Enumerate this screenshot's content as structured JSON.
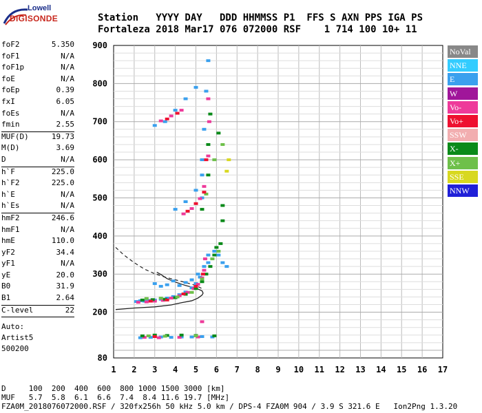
{
  "logo": {
    "line1": "Lowell",
    "line2": "DIGISONDE"
  },
  "header": {
    "line1": "Station   YYYY DAY   DDD HHMMSS P1  FFS S AXN PPS IGA PS",
    "line2": "Fortaleza 2018 Mar17 076 072000 RSF    1 714 100 10+ 11"
  },
  "params": {
    "group1": [
      {
        "k": "foF2",
        "v": "5.350"
      },
      {
        "k": "foF1",
        "v": "N/A"
      },
      {
        "k": "foF1p",
        "v": "N/A"
      },
      {
        "k": "foE",
        "v": "N/A"
      },
      {
        "k": "foEp",
        "v": "0.39"
      },
      {
        "k": "fxI",
        "v": "6.05"
      },
      {
        "k": "foEs",
        "v": "N/A"
      },
      {
        "k": "fmin",
        "v": "2.55"
      }
    ],
    "group2": [
      {
        "k": "MUF(D)",
        "v": "19.73"
      },
      {
        "k": "M(D)",
        "v": "3.69"
      },
      {
        "k": "D",
        "v": "N/A"
      }
    ],
    "group3": [
      {
        "k": "h`F",
        "v": "225.0"
      },
      {
        "k": "h`F2",
        "v": "225.0"
      },
      {
        "k": "h`E",
        "v": "N/A"
      },
      {
        "k": "h`Es",
        "v": "N/A"
      }
    ],
    "group4": [
      {
        "k": "hmF2",
        "v": "246.6"
      },
      {
        "k": "hmF1",
        "v": "N/A"
      },
      {
        "k": "hmE",
        "v": "110.0"
      },
      {
        "k": "yF2",
        "v": "34.4"
      },
      {
        "k": "yF1",
        "v": "N/A"
      },
      {
        "k": "yE",
        "v": "20.0"
      },
      {
        "k": "B0",
        "v": "31.9"
      },
      {
        "k": "B1",
        "v": "2.64"
      }
    ],
    "group5": [
      {
        "k": "C-level",
        "v": "22"
      }
    ],
    "auto": [
      "Auto:",
      "Artist5",
      "500200"
    ]
  },
  "legend": [
    {
      "label": "NoVal",
      "color": "#888888"
    },
    {
      "label": "NNE",
      "color": "#33ccff"
    },
    {
      "label": "E",
      "color": "#3aa0ee"
    },
    {
      "label": "W",
      "color": "#a0169a"
    },
    {
      "label": "Vo-",
      "color": "#ee3a9a"
    },
    {
      "label": "Vo+",
      "color": "#ee1030"
    },
    {
      "label": "SSW",
      "color": "#f2aeb0"
    },
    {
      "label": "X-",
      "color": "#0a8a1a"
    },
    {
      "label": "X+",
      "color": "#6ec04a"
    },
    {
      "label": "SSE",
      "color": "#d8d820"
    },
    {
      "label": "NNW",
      "color": "#2020d8"
    }
  ],
  "footer": {
    "line1": "D     100  200  400  600  800 1000 1500 3000 [km]",
    "line2": "MUF   5.7  5.8  6.1  6.6  7.4  8.4 11.6 19.7 [MHz]",
    "credit": "FZA0M_2018076072000.RSF / 320fx256h 50 kHz 5.0 km / DPS-4 FZA0M 904 / 3.9 S 321.6 E   Ion2Png 1.3.20"
  },
  "chart_data": {
    "type": "scatter",
    "title": "",
    "xlabel": "",
    "ylabel": "",
    "xlim": [
      1,
      17
    ],
    "ylim": [
      80,
      900
    ],
    "xticks": [
      1,
      2,
      3,
      4,
      5,
      6,
      7,
      8,
      9,
      10,
      11,
      12,
      13,
      14,
      15,
      16,
      17
    ],
    "yticks": [
      80,
      200,
      300,
      400,
      500,
      600,
      700,
      800,
      900
    ],
    "grid": true,
    "series": [
      {
        "color": "#3aa0ee",
        "points": [
          [
            2.1,
            228
          ],
          [
            2.3,
            230
          ],
          [
            2.5,
            229
          ],
          [
            2.7,
            231
          ],
          [
            3.0,
            232
          ],
          [
            3.3,
            234
          ],
          [
            3.6,
            237
          ],
          [
            3.9,
            241
          ],
          [
            4.2,
            246
          ],
          [
            4.5,
            253
          ],
          [
            4.8,
            264
          ],
          [
            5.0,
            275
          ],
          [
            5.2,
            292
          ],
          [
            5.4,
            320
          ],
          [
            5.6,
            350
          ],
          [
            3.0,
            275
          ],
          [
            3.3,
            268
          ],
          [
            3.6,
            272
          ],
          [
            3.9,
            282
          ],
          [
            4.2,
            270
          ],
          [
            4.5,
            278
          ],
          [
            4.8,
            285
          ],
          [
            5.1,
            300
          ],
          [
            5.6,
            330
          ],
          [
            5.9,
            360
          ],
          [
            6.1,
            350
          ],
          [
            6.3,
            330
          ],
          [
            6.5,
            320
          ],
          [
            5.3,
            500
          ],
          [
            5.3,
            560
          ],
          [
            4.0,
            470
          ],
          [
            4.5,
            490
          ],
          [
            5.0,
            520
          ],
          [
            5.3,
            600
          ],
          [
            5.4,
            680
          ],
          [
            5.5,
            780
          ],
          [
            5.6,
            860
          ],
          [
            4.0,
            730
          ],
          [
            4.5,
            760
          ],
          [
            5.0,
            790
          ],
          [
            3.5,
            700
          ],
          [
            3.0,
            690
          ],
          [
            2.3,
            133
          ],
          [
            2.8,
            134
          ],
          [
            3.3,
            135
          ],
          [
            3.8,
            134
          ],
          [
            4.3,
            135
          ],
          [
            4.8,
            135
          ],
          [
            5.3,
            136
          ],
          [
            5.8,
            135
          ]
        ]
      },
      {
        "color": "#ee3a9a",
        "points": [
          [
            2.2,
            226
          ],
          [
            2.6,
            227
          ],
          [
            3.0,
            229
          ],
          [
            3.4,
            231
          ],
          [
            3.8,
            237
          ],
          [
            4.2,
            243
          ],
          [
            4.6,
            252
          ],
          [
            4.9,
            262
          ],
          [
            5.1,
            273
          ],
          [
            5.3,
            290
          ],
          [
            5.4,
            310
          ],
          [
            5.45,
            340
          ],
          [
            4.4,
            458
          ],
          [
            4.8,
            472
          ],
          [
            5.2,
            498
          ],
          [
            5.4,
            530
          ],
          [
            5.6,
            610
          ],
          [
            5.65,
            700
          ],
          [
            3.3,
            702
          ],
          [
            3.8,
            715
          ],
          [
            4.3,
            730
          ],
          [
            5.6,
            760
          ],
          [
            2.5,
            134
          ],
          [
            3.2,
            133
          ],
          [
            4.2,
            134
          ],
          [
            5.1,
            135
          ],
          [
            5.3,
            175
          ]
        ]
      },
      {
        "color": "#0a8a1a",
        "points": [
          [
            2.4,
            232
          ],
          [
            2.9,
            233
          ],
          [
            3.5,
            234
          ],
          [
            4.0,
            238
          ],
          [
            4.5,
            247
          ],
          [
            5.0,
            262
          ],
          [
            5.3,
            280
          ],
          [
            5.5,
            300
          ],
          [
            5.7,
            320
          ],
          [
            5.9,
            350
          ],
          [
            6.0,
            370
          ],
          [
            6.2,
            380
          ],
          [
            6.3,
            440
          ],
          [
            6.3,
            480
          ],
          [
            5.3,
            470
          ],
          [
            5.6,
            560
          ],
          [
            5.6,
            640
          ],
          [
            6.1,
            670
          ],
          [
            5.7,
            720
          ],
          [
            2.4,
            138
          ],
          [
            3.0,
            140
          ],
          [
            3.6,
            139
          ],
          [
            4.3,
            140
          ],
          [
            5.0,
            139
          ],
          [
            5.9,
            138
          ]
        ]
      },
      {
        "color": "#6ec04a",
        "points": [
          [
            2.6,
            236
          ],
          [
            3.3,
            237
          ],
          [
            4.1,
            240
          ],
          [
            4.8,
            252
          ],
          [
            5.3,
            287
          ],
          [
            5.8,
            340
          ],
          [
            6.1,
            360
          ],
          [
            5.5,
            510
          ],
          [
            5.9,
            600
          ],
          [
            6.3,
            640
          ],
          [
            2.7,
            138
          ],
          [
            3.5,
            137
          ],
          [
            5.0,
            138
          ]
        ]
      },
      {
        "color": "#ee1030",
        "points": [
          [
            2.8,
            229
          ],
          [
            3.6,
            232
          ],
          [
            4.4,
            248
          ],
          [
            5.0,
            268
          ],
          [
            5.35,
            300
          ],
          [
            4.6,
            465
          ],
          [
            5.0,
            485
          ],
          [
            5.4,
            515
          ],
          [
            3.6,
            707
          ],
          [
            4.1,
            722
          ],
          [
            5.5,
            600
          ],
          [
            3.0,
            136
          ]
        ]
      },
      {
        "color": "#d8d820",
        "points": [
          [
            6.5,
            570
          ],
          [
            6.6,
            600
          ]
        ]
      }
    ],
    "profile_solid": [
      [
        1.1,
        207
      ],
      [
        2.0,
        211
      ],
      [
        3.0,
        214
      ],
      [
        3.8,
        219
      ],
      [
        4.3,
        225
      ],
      [
        4.8,
        230
      ],
      [
        5.1,
        237
      ],
      [
        5.3,
        245
      ],
      [
        5.35,
        250
      ],
      [
        5.3,
        256
      ],
      [
        5.0,
        263
      ],
      [
        4.5,
        270
      ],
      [
        4.0,
        279
      ],
      [
        3.6,
        288
      ],
      [
        3.3,
        299
      ],
      [
        3.1,
        305
      ]
    ],
    "profile_dashed": [
      [
        1.1,
        370
      ],
      [
        1.5,
        350
      ],
      [
        2.0,
        330
      ],
      [
        2.5,
        313
      ],
      [
        3.0,
        301
      ],
      [
        3.5,
        292
      ],
      [
        4.0,
        285
      ],
      [
        4.5,
        278
      ],
      [
        5.0,
        270
      ],
      [
        5.3,
        262
      ]
    ]
  }
}
